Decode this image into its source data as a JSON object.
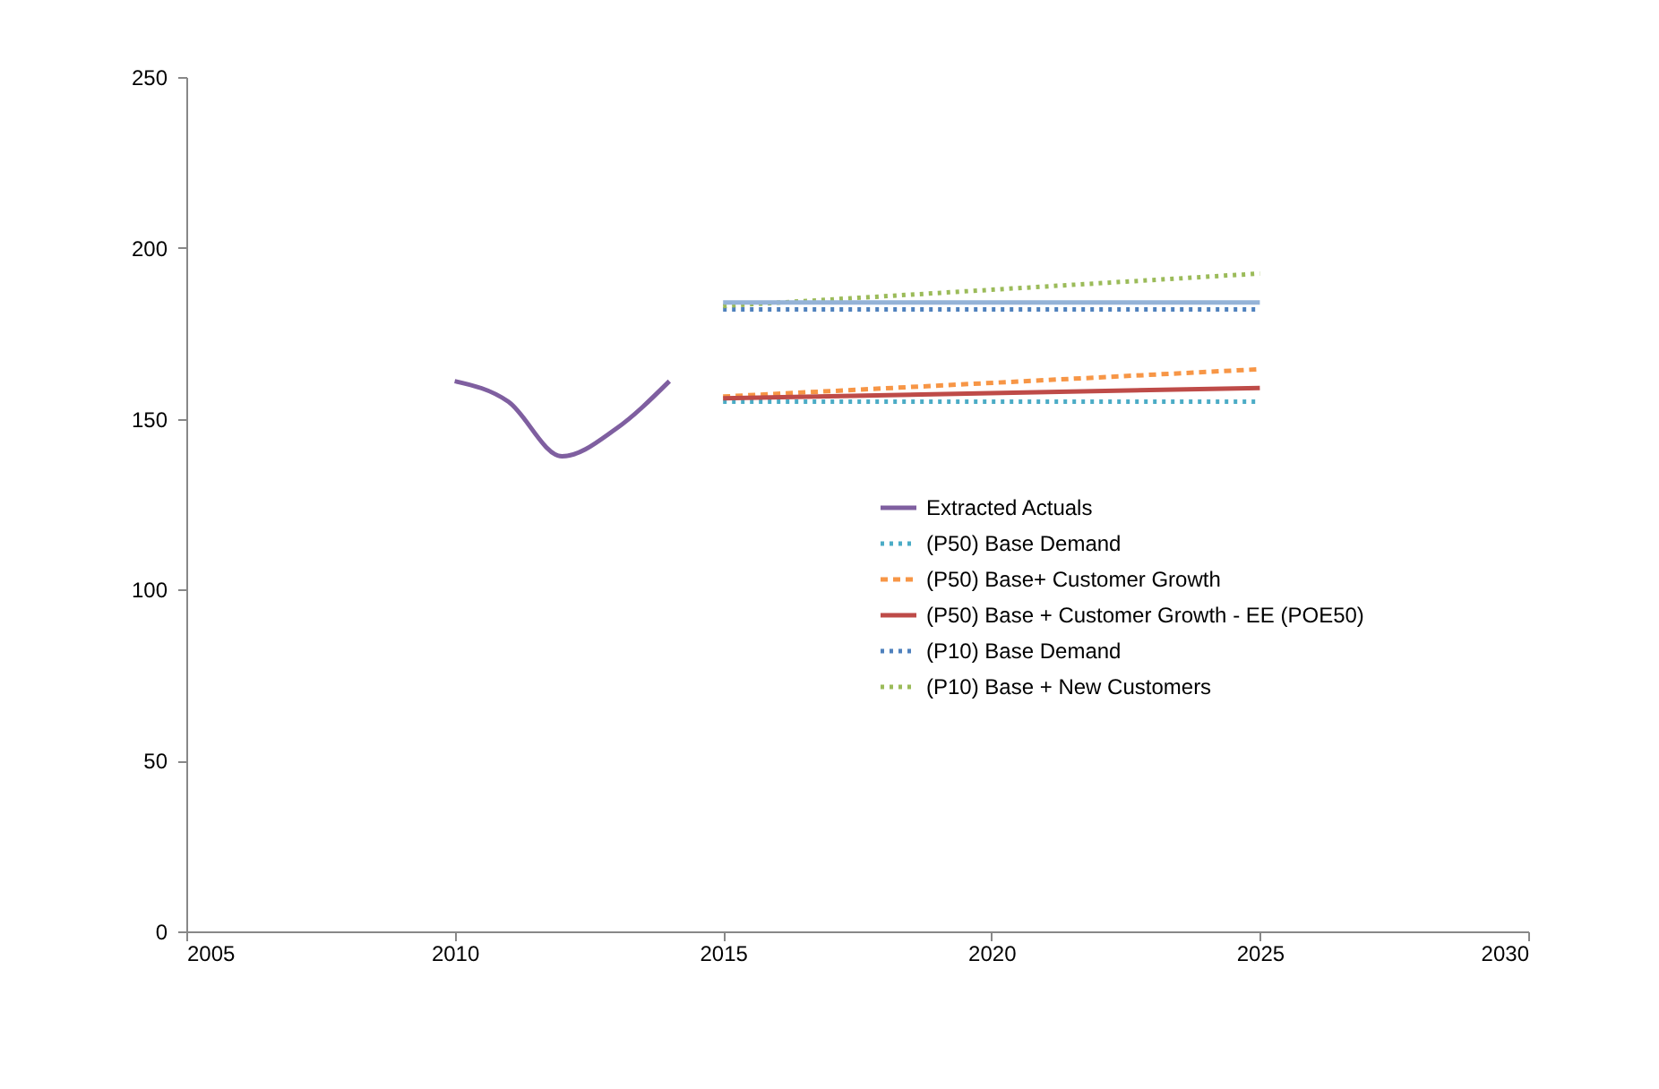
{
  "chart_data": {
    "type": "line",
    "xlim": [
      2005,
      2030
    ],
    "xticks": [
      2005,
      2010,
      2015,
      2020,
      2025,
      2030
    ],
    "ylim": [
      0,
      250
    ],
    "yticks": [
      0,
      50,
      100,
      150,
      200,
      250
    ],
    "grid": false,
    "legend": "right",
    "series": [
      {
        "name": "Extracted Actuals",
        "color": "#7f5fa0",
        "line_style": "solid",
        "x": [
          2010,
          2011,
          2012,
          2013,
          2014
        ],
        "values": [
          161,
          155,
          139,
          147,
          161
        ]
      },
      {
        "name": "(P50) Base Demand",
        "color": "#4bacc6",
        "line_style": "dotted",
        "x": [
          2015,
          2025
        ],
        "values": [
          155,
          155
        ]
      },
      {
        "name": "(P50) Base+ Customer Growth",
        "color": "#f79646",
        "line_style": "dashed",
        "x": [
          2015,
          2025
        ],
        "values": [
          156.5,
          164.5
        ]
      },
      {
        "name": "(P50) Base + Customer Growth - EE (POE50)",
        "color": "#be4b48",
        "line_style": "solid",
        "x": [
          2015,
          2025
        ],
        "values": [
          156,
          159
        ]
      },
      {
        "name": "(P10) Base Demand",
        "color": "#4f81bd",
        "line_style": "dotted",
        "x": [
          2015,
          2025
        ],
        "values": [
          182,
          182
        ]
      },
      {
        "name": "(P10) Base + New Customers",
        "color": "#9bbb59",
        "line_style": "dotted",
        "x": [
          2015,
          2025
        ],
        "values": [
          183,
          192.5
        ]
      },
      {
        "color": "#95b3d7",
        "line_style": "solid",
        "x": [
          2015,
          2025
        ],
        "values": [
          184,
          184
        ]
      }
    ]
  }
}
